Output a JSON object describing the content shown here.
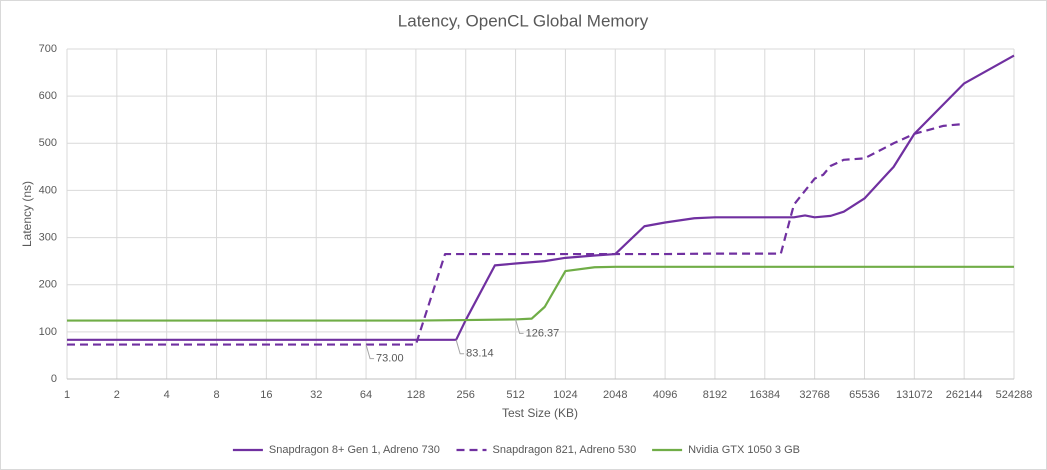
{
  "chart_data": {
    "type": "line",
    "title": "Latency, OpenCL Global Memory",
    "x_label": "Test Size (KB)",
    "y_label": "Latency (ns)",
    "log_x": 2,
    "grid": true,
    "legend": "bottom",
    "xlim": [
      1,
      524288
    ],
    "xticks": [
      1,
      2,
      4,
      8,
      16,
      32,
      64,
      128,
      256,
      512,
      1024,
      2048,
      4096,
      8192,
      16384,
      32768,
      65536,
      131072,
      262144,
      524288
    ],
    "ylim": [
      0,
      700
    ],
    "yticks": [
      0,
      100,
      200,
      300,
      400,
      500,
      600,
      700
    ],
    "series": [
      {
        "name": "Snapdragon 8+ Gen 1, Adreno 730",
        "color": "#7030a0",
        "dash": false,
        "x": [
          1,
          2,
          4,
          8,
          16,
          32,
          64,
          128,
          224,
          256,
          384,
          512,
          768,
          1024,
          1536,
          2048,
          3072,
          4096,
          6144,
          8192,
          16384,
          24576,
          28672,
          32768,
          40960,
          49152,
          65536,
          98304,
          131072,
          262144,
          524288
        ],
        "values": [
          83.14,
          83.14,
          83.14,
          83.14,
          83.14,
          83.14,
          83.14,
          83.14,
          83.14,
          125,
          241,
          245,
          250,
          257,
          262,
          265,
          324,
          332,
          341,
          343,
          343,
          343,
          347,
          343,
          346,
          355,
          383,
          450,
          520,
          627,
          686
        ],
        "value_labels": [
          null,
          null,
          null,
          null,
          null,
          null,
          null,
          null,
          "83.14",
          null,
          null,
          null,
          null,
          null,
          null,
          null,
          null,
          null,
          null,
          null,
          null,
          null,
          null,
          null,
          null,
          null,
          null,
          null,
          null,
          null,
          null
        ]
      },
      {
        "name": "Snapdragon 821, Adreno 530",
        "color": "#7030a0",
        "dash": true,
        "x": [
          1,
          2,
          4,
          8,
          16,
          32,
          64,
          128,
          192,
          256,
          512,
          1024,
          2048,
          4096,
          8192,
          16384,
          20480,
          24576,
          32768,
          36864,
          40960,
          49152,
          65536,
          98304,
          131072,
          196608,
          262144
        ],
        "values": [
          73.0,
          73,
          73,
          73,
          73,
          73,
          73,
          73,
          265,
          265,
          265,
          265,
          265,
          265,
          266,
          266,
          266,
          370,
          425,
          433,
          452,
          465,
          468,
          500,
          520,
          537,
          541
        ],
        "value_labels": [
          null,
          null,
          null,
          null,
          null,
          null,
          "73.00",
          null,
          null,
          null,
          null,
          null,
          null,
          null,
          null,
          null,
          null,
          null,
          null,
          null,
          null,
          null,
          null,
          null,
          null,
          null,
          null
        ]
      },
      {
        "name": "Nvidia GTX 1050 3 GB",
        "color": "#70ad47",
        "dash": false,
        "x": [
          1,
          2,
          4,
          8,
          16,
          32,
          64,
          128,
          256,
          512,
          640,
          768,
          1024,
          1536,
          2048,
          4096,
          8192,
          16384,
          32768,
          65536,
          131072,
          262144,
          524288
        ],
        "values": [
          124,
          124,
          124,
          124,
          124,
          124,
          124,
          124,
          125,
          126.37,
          128,
          153,
          229,
          237,
          238,
          238,
          238,
          238,
          238,
          238,
          238,
          238,
          238
        ],
        "value_labels": [
          null,
          null,
          null,
          null,
          null,
          null,
          null,
          null,
          null,
          "126.37",
          null,
          null,
          null,
          null,
          null,
          null,
          null,
          null,
          null,
          null,
          null,
          null,
          null
        ]
      }
    ]
  }
}
